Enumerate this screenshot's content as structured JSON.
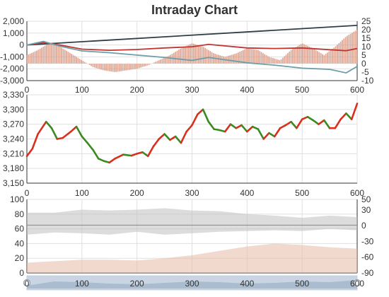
{
  "chart_data": {
    "title": "Intraday Chart",
    "type": "multi-panel intraday",
    "x_ticks": [
      0,
      100,
      200,
      300,
      400,
      500,
      600
    ],
    "x_range": [
      0,
      600
    ],
    "panels": [
      {
        "id": "panel1",
        "type": "line+bar",
        "left_axis": {
          "range": [
            -3000,
            2000
          ],
          "ticks": [
            2000,
            1000,
            0,
            -1000,
            -2000,
            -3000
          ],
          "tick_labels": [
            "2,000",
            "1,000",
            "0",
            "-1,000",
            "-2,000",
            "-3,000"
          ]
        },
        "right_axis": {
          "range": [
            -10,
            25
          ],
          "ticks": [
            25,
            20,
            15,
            10,
            5,
            0,
            -5,
            -10
          ],
          "tick_labels": [
            "25",
            "20",
            "15",
            "10",
            "5",
            "0",
            "-5",
            "-10"
          ]
        },
        "series": [
          {
            "color": "#2f3e46",
            "axis": "left",
            "x": [
              0,
              600
            ],
            "y": [
              0,
              1650
            ]
          },
          {
            "color": "#c23531",
            "axis": "left",
            "x": [
              0,
              30,
              60,
              100,
              150,
              200,
              250,
              300,
              330,
              400,
              450,
              500,
              550,
              580,
              600
            ],
            "y": [
              0,
              200,
              0,
              -350,
              -450,
              -380,
              -250,
              -150,
              50,
              -250,
              -300,
              -250,
              -400,
              -480,
              -300
            ]
          },
          {
            "color": "#6e9ea6",
            "axis": "left",
            "x": [
              0,
              30,
              60,
              100,
              150,
              200,
              250,
              300,
              330,
              400,
              450,
              500,
              550,
              580,
              600
            ],
            "y": [
              0,
              300,
              -100,
              -500,
              -650,
              -850,
              -1050,
              -1300,
              -1050,
              -1500,
              -1700,
              -1950,
              -2050,
              -2350,
              -1800
            ]
          },
          {
            "color": "#d99a85",
            "axis": "right",
            "type": "bar",
            "x": [
              0,
              20,
              40,
              60,
              80,
              100,
              120,
              140,
              160,
              180,
              200,
              220,
              240,
              260,
              280,
              300,
              320,
              340,
              360,
              380,
              400,
              420,
              440,
              460,
              480,
              500,
              520,
              540,
              560,
              580,
              600
            ],
            "y": [
              5,
              8,
              12,
              10,
              6,
              2,
              -2,
              -4,
              -5,
              -4,
              -3,
              -1,
              2,
              5,
              9,
              12,
              10,
              6,
              4,
              6,
              9,
              8,
              4,
              2,
              8,
              12,
              9,
              5,
              10,
              16,
              20
            ]
          }
        ]
      },
      {
        "id": "panel2",
        "type": "candlestick-line",
        "left_axis": {
          "range": [
            3150,
            3330
          ],
          "ticks": [
            3330,
            3300,
            3270,
            3240,
            3210,
            3180,
            3150
          ],
          "tick_labels": [
            "3,330",
            "3,300",
            "3,270",
            "3,240",
            "3,210",
            "3,180",
            "3,150"
          ]
        },
        "series": [
          {
            "colors": [
              "#d9301e",
              "#3a8a1f"
            ],
            "x": [
              0,
              10,
              20,
              35,
              45,
              55,
              65,
              80,
              90,
              100,
              110,
              120,
              130,
              140,
              150,
              160,
              175,
              190,
              200,
              210,
              220,
              230,
              240,
              250,
              260,
              270,
              280,
              290,
              300,
              310,
              320,
              330,
              340,
              350,
              360,
              370,
              380,
              390,
              400,
              410,
              420,
              430,
              440,
              450,
              460,
              470,
              480,
              490,
              500,
              510,
              520,
              530,
              540,
              550,
              560,
              570,
              580,
              590,
              600
            ],
            "y": [
              3205,
              3220,
              3250,
              3275,
              3262,
              3240,
              3242,
              3255,
              3265,
              3245,
              3232,
              3218,
              3200,
              3195,
              3192,
              3200,
              3208,
              3206,
              3210,
              3213,
              3205,
              3225,
              3240,
              3250,
              3238,
              3245,
              3232,
              3255,
              3268,
              3290,
              3300,
              3275,
              3260,
              3258,
              3255,
              3270,
              3262,
              3268,
              3255,
              3265,
              3260,
              3240,
              3252,
              3245,
              3262,
              3268,
              3275,
              3262,
              3280,
              3285,
              3278,
              3270,
              3278,
              3262,
              3262,
              3280,
              3292,
              3280,
              3312
            ]
          }
        ]
      },
      {
        "id": "panel3",
        "type": "band",
        "left_axis": {
          "range": [
            0,
            100
          ],
          "ticks": [
            100,
            80,
            60,
            40,
            20,
            0
          ],
          "tick_labels": [
            "100",
            "80",
            "60",
            "40",
            "20",
            "0"
          ]
        },
        "right_axis": {
          "range": [
            -90,
            50
          ],
          "ticks": [
            50,
            30,
            0,
            -30,
            -60,
            -90
          ],
          "tick_labels": [
            "50",
            "30",
            "0",
            "-30",
            "-60",
            "-90"
          ]
        },
        "series": [
          {
            "color": "#bfbfbf",
            "name": "",
            "x": [
              0,
              50,
              100,
              150,
              200,
              250,
              300,
              350,
              400,
              450,
              500,
              550,
              600
            ],
            "upper": [
              82,
              82,
              86,
              85,
              86,
              88,
              85,
              84,
              80,
              78,
              75,
              78,
              76
            ],
            "lower": [
              52,
              55,
              54,
              52,
              56,
              52,
              54,
              56,
              57,
              58,
              57,
              60,
              58
            ]
          },
          {
            "color": "#e8b9a6",
            "name": "",
            "x": [
              0,
              50,
              100,
              150,
              200,
              250,
              300,
              350,
              400,
              450,
              500,
              550,
              600
            ],
            "upper": [
              14,
              16,
              18,
              18,
              17,
              20,
              24,
              30,
              36,
              40,
              38,
              35,
              33
            ],
            "lower": [
              0,
              0,
              0,
              0,
              0,
              0,
              0,
              0,
              0,
              0,
              0,
              0,
              0
            ]
          },
          {
            "color": "#888888",
            "name": "",
            "x": [
              0,
              600
            ],
            "y": [
              65,
              65
            ]
          }
        ]
      }
    ],
    "slider": {
      "range": [
        0,
        600
      ],
      "start": 0,
      "end": 600
    }
  }
}
